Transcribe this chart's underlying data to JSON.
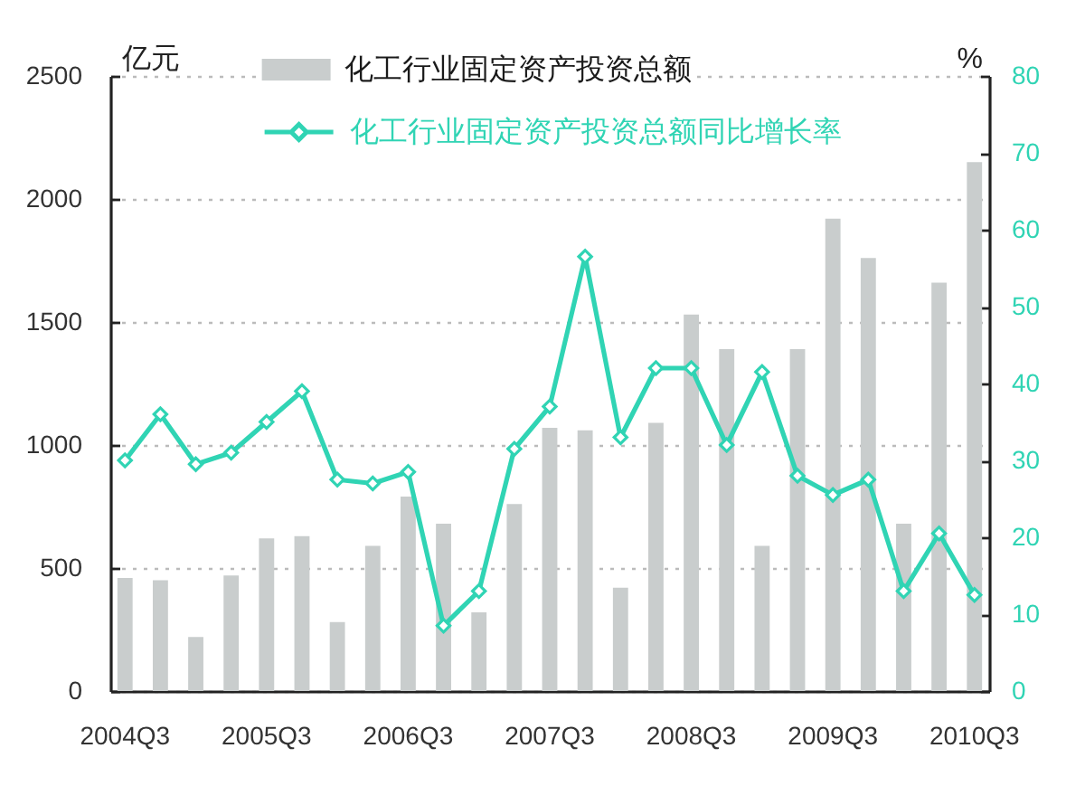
{
  "chart_data": {
    "type": "bar",
    "ylabel": "亿元",
    "y2label": "%",
    "categories": [
      "2004Q3",
      null,
      null,
      null,
      "2005Q3",
      null,
      null,
      null,
      "2006Q3",
      null,
      null,
      null,
      "2007Q3",
      null,
      null,
      null,
      "2008Q3",
      null,
      null,
      null,
      "2009Q3",
      null,
      null,
      null,
      "2010Q3"
    ],
    "series": [
      {
        "name": "化工行业固定资产投资总额",
        "color": "#c9cdcd",
        "values": [
          460,
          450,
          220,
          470,
          620,
          630,
          280,
          590,
          790,
          680,
          320,
          760,
          1070,
          1060,
          420,
          1090,
          1530,
          1390,
          590,
          1390,
          1920,
          1760,
          680,
          1660,
          2150
        ]
      },
      {
        "name": "化工行业固定资产投资总额同比增长率",
        "type": "line",
        "axis": "y2",
        "color": "#30d4b4",
        "values": [
          30,
          36,
          29.5,
          31,
          35,
          39,
          27.5,
          27,
          28.5,
          8.5,
          13,
          31.5,
          37,
          56.5,
          33,
          42,
          42,
          32,
          41.5,
          28,
          25.5,
          27.5,
          13,
          20.5,
          12.5
        ]
      }
    ],
    "ylim": [
      0,
      2500
    ],
    "yticks": [
      0,
      500,
      1000,
      1500,
      2000,
      2500
    ],
    "y2lim": [
      0,
      80
    ],
    "y2ticks": [
      0,
      10,
      20,
      30,
      40,
      50,
      60,
      70,
      80
    ],
    "grid": "y",
    "legend": "top",
    "marker": "diamond"
  }
}
